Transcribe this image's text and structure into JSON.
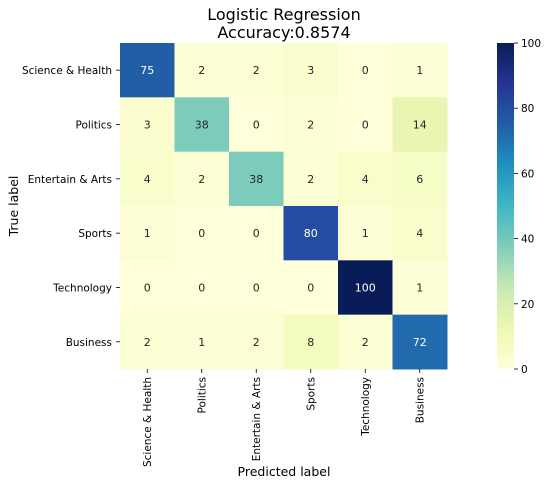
{
  "chart_data": {
    "type": "heatmap",
    "title_line1": "Logistic Regression",
    "title_line2": "Accuracy:0.8574",
    "xlabel": "Predicted label",
    "ylabel": "True label",
    "x_categories": [
      "Science & Health",
      "Politics",
      "Entertain & Arts",
      "Sports",
      "Technology",
      "Business"
    ],
    "y_categories": [
      "Science & Health",
      "Politics",
      "Entertain & Arts",
      "Sports",
      "Technology",
      "Business"
    ],
    "values": [
      [
        75,
        2,
        2,
        3,
        0,
        1
      ],
      [
        3,
        38,
        0,
        2,
        0,
        14
      ],
      [
        4,
        2,
        38,
        2,
        4,
        6
      ],
      [
        1,
        0,
        0,
        80,
        1,
        4
      ],
      [
        0,
        0,
        0,
        0,
        100,
        1
      ],
      [
        2,
        1,
        2,
        8,
        2,
        72
      ]
    ],
    "colorbar": {
      "min": 0,
      "max": 100,
      "ticks": [
        0,
        20,
        40,
        60,
        80,
        100
      ]
    },
    "colormap": "YlGnBu",
    "colormap_stops": [
      "#ffffd9",
      "#edf8b1",
      "#c7e9b4",
      "#7fcdbb",
      "#41b6c4",
      "#1d91c0",
      "#225ea8",
      "#253494",
      "#081d58"
    ]
  }
}
